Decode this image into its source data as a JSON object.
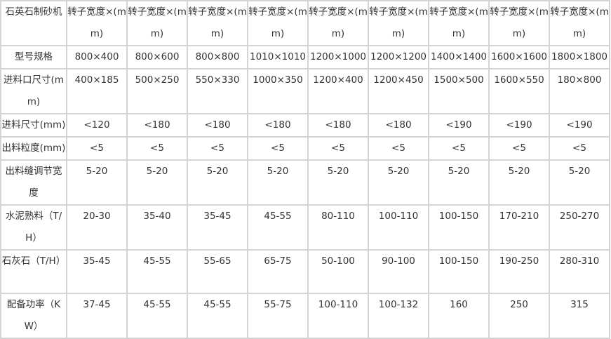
{
  "table": {
    "header": [
      "石英石制砂机",
      "转子宽度×(mm)",
      "转子宽度×(mm)",
      "转子宽度×(mm)",
      "转子宽度×(mm)",
      "转子宽度×(mm)",
      "转子宽度×(mm)",
      "转子宽度×(mm)",
      "转子宽度×(mm)",
      "转子宽度×(mm)"
    ],
    "rows": [
      [
        "型号规格",
        "800×400",
        "800×600",
        "800×800",
        "1010×1010",
        "1200×1000",
        "1200×1200",
        "1400×1400",
        "1600×1600",
        "1800×1800"
      ],
      [
        "进料口尺寸(mm)",
        "400×185",
        "500×250",
        "550×330",
        "1000×350",
        "1200×400",
        "1200×450",
        "1500×500",
        "1600×550",
        "180×800"
      ],
      [
        "进料尺寸(mm)",
        "<120",
        "<180",
        "<180",
        "<180",
        "<180",
        "<180",
        "<190",
        "<190",
        "<190"
      ],
      [
        "出料粒度(mm)",
        "<5",
        "<5",
        "<5",
        "<5",
        "<5",
        "<5",
        "<5",
        "<5",
        "<5"
      ],
      [
        "出料缝调节宽度",
        "5-20",
        "5-20",
        "5-20",
        "5-20",
        "5-20",
        "5-20",
        "5-20",
        "5-20",
        "5-20"
      ],
      [
        "水泥熟料（T/H）",
        "20-30",
        "35-40",
        "35-45",
        "45-55",
        "80-110",
        "100-110",
        "100-150",
        "170-210",
        "250-270"
      ],
      [
        "石灰石（T/H）",
        "35-45",
        "45-55",
        "55-65",
        "65-75",
        "50-100",
        "90-100",
        "100-150",
        "190-250",
        "280-310"
      ],
      [
        "配备功率（KW）",
        "37-45",
        "45-55",
        "45-55",
        "55-75",
        "100-110",
        "100-132",
        "160",
        "250",
        "315"
      ]
    ]
  }
}
